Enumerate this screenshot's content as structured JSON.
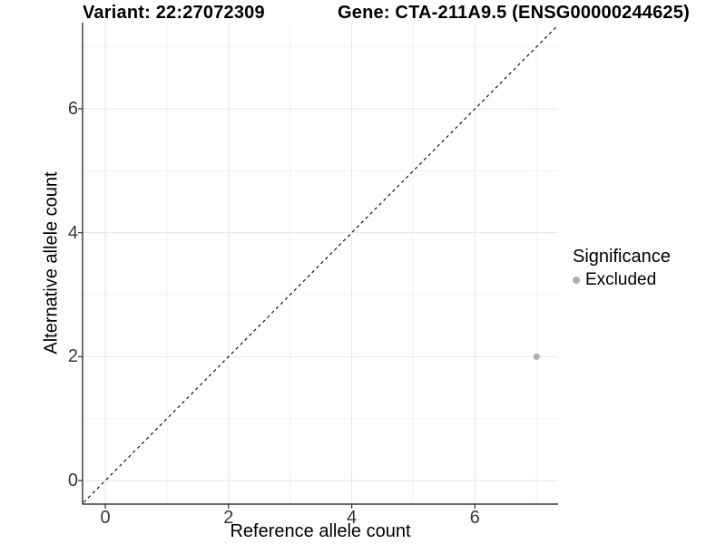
{
  "title": {
    "left": "Variant: 22:27072309",
    "right": "Gene: CTA-211A9.5 (ENSG00000244625)"
  },
  "chart_data": {
    "type": "scatter",
    "xlabel": "Reference allele count",
    "ylabel": "Alternative allele count",
    "xlim": [
      -0.37,
      7.35
    ],
    "ylim": [
      -0.38,
      7.39
    ],
    "x_ticks": [
      0,
      2,
      4,
      6
    ],
    "y_ticks": [
      0,
      2,
      4,
      6
    ],
    "x_minor_ticks": [
      1,
      3,
      5,
      7
    ],
    "y_minor_ticks": [
      1,
      3,
      5,
      7
    ],
    "grid": "major+minor",
    "identity_line": {
      "slope": 1,
      "intercept": 0,
      "style": "dashed",
      "color": "#000000"
    },
    "series": [
      {
        "name": "Excluded",
        "color": "#b0b0b0",
        "points": [
          {
            "x": 7,
            "y": 2
          }
        ]
      }
    ],
    "legend": {
      "title": "Significance",
      "position": "right"
    }
  },
  "colors": {
    "grid_major": "#e6e6e6",
    "grid_minor": "#f2f2f2",
    "axis_line": "#111111",
    "tick_mark": "#333333",
    "tick_label": "#383838",
    "point": "#b0b0b0",
    "title_text": "#000000"
  }
}
